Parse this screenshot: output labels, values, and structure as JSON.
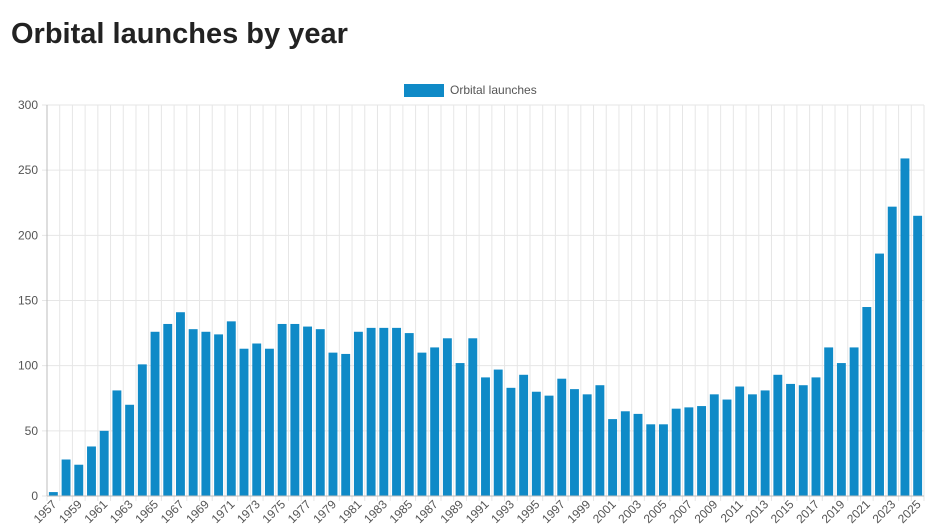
{
  "page": {
    "title": "Orbital launches by year"
  },
  "colors": {
    "bar": "#0f8ac7",
    "grid": "#e6e6e6",
    "axis": "#bdbdbd",
    "text": "#555555",
    "title": "#222222"
  },
  "chart_data": {
    "type": "bar",
    "legend": {
      "label": "Orbital launches",
      "position": "top-center"
    },
    "xlabel": "",
    "ylabel": "",
    "ylim": [
      0,
      300
    ],
    "y_ticks": [
      0,
      50,
      100,
      150,
      200,
      250,
      300
    ],
    "grid": true,
    "categories": [
      "1957",
      "1958",
      "1959",
      "1960",
      "1961",
      "1962",
      "1963",
      "1964",
      "1965",
      "1966",
      "1967",
      "1968",
      "1969",
      "1970",
      "1971",
      "1972",
      "1973",
      "1974",
      "1975",
      "1976",
      "1977",
      "1978",
      "1979",
      "1980",
      "1981",
      "1982",
      "1983",
      "1984",
      "1985",
      "1986",
      "1987",
      "1988",
      "1989",
      "1990",
      "1991",
      "1992",
      "1993",
      "1994",
      "1995",
      "1996",
      "1997",
      "1998",
      "1999",
      "2000",
      "2001",
      "2002",
      "2003",
      "2004",
      "2005",
      "2006",
      "2007",
      "2008",
      "2009",
      "2010",
      "2011",
      "2012",
      "2013",
      "2014",
      "2015",
      "2016",
      "2017",
      "2018",
      "2019",
      "2020",
      "2021",
      "2022",
      "2023",
      "2024",
      "2025"
    ],
    "x_tick_labels": [
      "1957",
      "1959",
      "1961",
      "1963",
      "1965",
      "1967",
      "1969",
      "1971",
      "1973",
      "1975",
      "1977",
      "1979",
      "1981",
      "1983",
      "1985",
      "1987",
      "1989",
      "1991",
      "1993",
      "1995",
      "1997",
      "1999",
      "2001",
      "2003",
      "2005",
      "2007",
      "2009",
      "2011",
      "2013",
      "2015",
      "2017",
      "2019",
      "2021",
      "2023",
      "2025"
    ],
    "series": [
      {
        "name": "Orbital launches",
        "values": [
          3,
          28,
          24,
          38,
          50,
          81,
          70,
          101,
          126,
          132,
          141,
          128,
          126,
          124,
          134,
          113,
          117,
          113,
          132,
          132,
          130,
          128,
          110,
          109,
          126,
          129,
          129,
          129,
          125,
          110,
          114,
          121,
          102,
          121,
          91,
          97,
          83,
          93,
          80,
          77,
          90,
          82,
          78,
          85,
          59,
          65,
          63,
          55,
          55,
          67,
          68,
          69,
          78,
          74,
          84,
          78,
          81,
          93,
          86,
          85,
          91,
          114,
          102,
          114,
          145,
          186,
          222,
          259,
          215
        ]
      }
    ]
  }
}
